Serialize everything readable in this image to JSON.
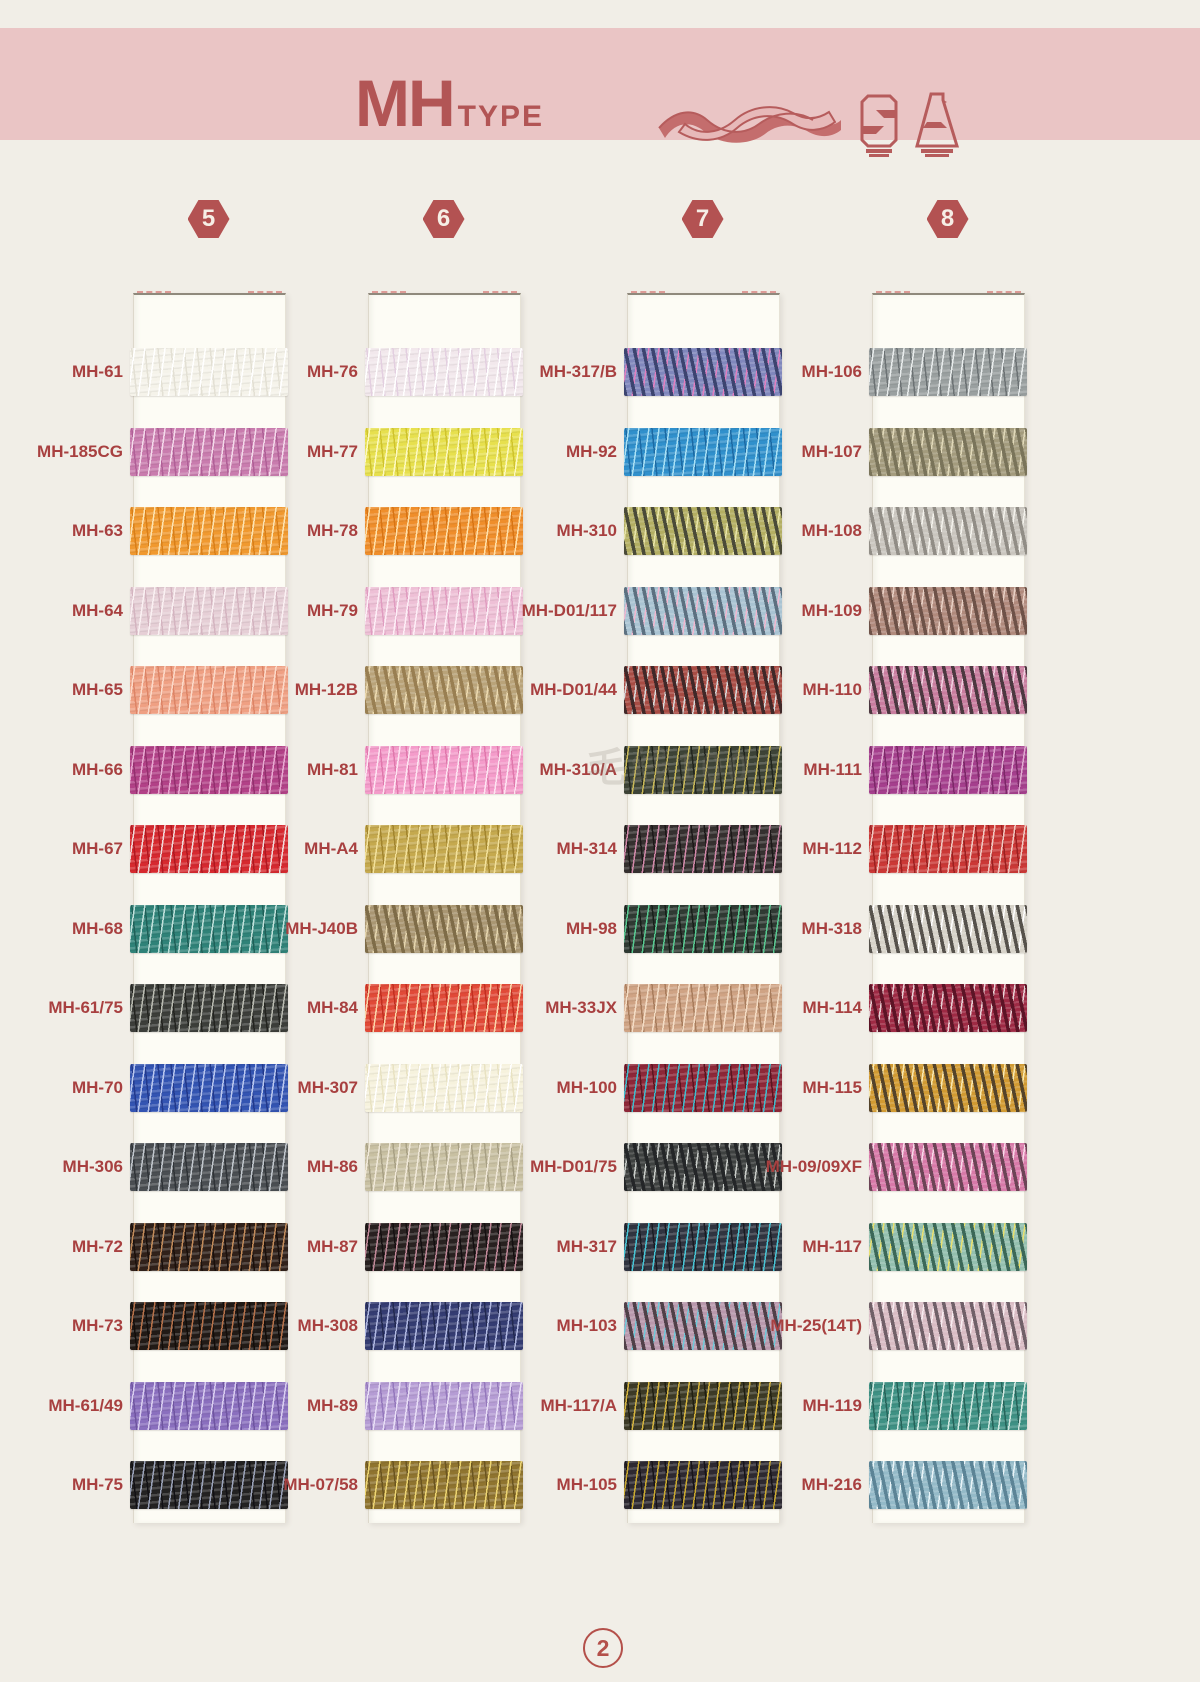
{
  "page": {
    "number": "2",
    "background": "#f1eee7"
  },
  "header": {
    "title_main": "MH",
    "title_sub": "TYPE",
    "band_color": "#eac5c5",
    "accent_color": "#b25555",
    "icons": [
      "twisted-ribbon-icon",
      "thread-spool-icon",
      "thread-cone-icon"
    ]
  },
  "watermark": {
    "text": "毛线100"
  },
  "columns": [
    {
      "badge": "5",
      "swatches": [
        {
          "code": "MH-61",
          "base": "#f5f3ea",
          "fleck": "#ffffff",
          "dark": "#e3e0d4",
          "twist": false
        },
        {
          "code": "MH-185CG",
          "base": "#c97cae",
          "fleck": "#f4d9ea",
          "dark": "#b05f97",
          "twist": false
        },
        {
          "code": "MH-63",
          "base": "#f0992f",
          "fleck": "#fde3b0",
          "dark": "#d97f18",
          "twist": false
        },
        {
          "code": "MH-64",
          "base": "#e6cfd6",
          "fleck": "#faf0f2",
          "dark": "#d4b4c0",
          "twist": false
        },
        {
          "code": "MH-65",
          "base": "#efa083",
          "fleck": "#fcd9c8",
          "dark": "#dd8466",
          "twist": false
        },
        {
          "code": "MH-66",
          "base": "#b24187",
          "fleck": "#e8a8d0",
          "dark": "#93306e",
          "twist": false
        },
        {
          "code": "MH-67",
          "base": "#d6292f",
          "fleck": "#f0d8d8",
          "dark": "#b01820",
          "twist": false
        },
        {
          "code": "MH-68",
          "base": "#2f8278",
          "fleck": "#bfe0da",
          "dark": "#1f6058",
          "twist": false
        },
        {
          "code": "MH-61/75",
          "base": "#3c3e3a",
          "fleck": "#b8bab0",
          "dark": "#232420",
          "twist": false
        },
        {
          "code": "MH-70",
          "base": "#3354b2",
          "fleck": "#b8c6ee",
          "dark": "#22398c",
          "twist": false
        },
        {
          "code": "MH-306",
          "base": "#4a4e52",
          "fleck": "#c0c6cc",
          "dark": "#303438",
          "twist": false
        },
        {
          "code": "MH-72",
          "base": "#30211a",
          "fleck": "#c08a5a",
          "dark": "#1a100c",
          "twist": false
        },
        {
          "code": "MH-73",
          "base": "#211a16",
          "fleck": "#b5714a",
          "dark": "#120d0a",
          "twist": false
        },
        {
          "code": "MH-61/49",
          "base": "#8a6fbe",
          "fleck": "#d8cdf0",
          "dark": "#6f55a0",
          "twist": false
        },
        {
          "code": "MH-75",
          "base": "#232222",
          "fleck": "#9aa2b8",
          "dark": "#111014",
          "twist": false
        }
      ]
    },
    {
      "badge": "6",
      "swatches": [
        {
          "code": "MH-76",
          "base": "#f2e8ec",
          "fleck": "#ffffff",
          "dark": "#e3cfe0",
          "twist": false
        },
        {
          "code": "MH-77",
          "base": "#e7e04e",
          "fleck": "#fdf9c0",
          "dark": "#cfc32c",
          "twist": false
        },
        {
          "code": "MH-78",
          "base": "#ef8e2b",
          "fleck": "#ffe0a8",
          "dark": "#d87414",
          "twist": false
        },
        {
          "code": "MH-79",
          "base": "#eec0d6",
          "fleck": "#fdeef6",
          "dark": "#e09cc0",
          "twist": false
        },
        {
          "code": "MH-12B",
          "base": "#b9a379",
          "fleck": "#ecd9ae",
          "dark": "#997f52",
          "twist": true
        },
        {
          "code": "MH-81",
          "base": "#f49cca",
          "fleck": "#fde4f1",
          "dark": "#e078ac",
          "twist": false
        },
        {
          "code": "MH-A4",
          "base": "#c5a94e",
          "fleck": "#f2e098",
          "dark": "#a2852e",
          "twist": false
        },
        {
          "code": "MH-J40B",
          "base": "#a99672",
          "fleck": "#e4d4ac",
          "dark": "#7e6c48",
          "twist": true
        },
        {
          "code": "MH-84",
          "base": "#e14a38",
          "fleck": "#fbd4a8",
          "dark": "#c22f20",
          "twist": false
        },
        {
          "code": "MH-307",
          "base": "#f6f2dd",
          "fleck": "#ffffff",
          "dark": "#e8e2c2",
          "twist": false
        },
        {
          "code": "MH-86",
          "base": "#c8c0a2",
          "fleck": "#f0e8d8",
          "dark": "#a8a084",
          "twist": false
        },
        {
          "code": "MH-87",
          "base": "#282120",
          "fleck": "#c08898",
          "dark": "#151011",
          "twist": false
        },
        {
          "code": "MH-308",
          "base": "#343c72",
          "fleck": "#aeb6e0",
          "dark": "#222950",
          "twist": false
        },
        {
          "code": "MH-89",
          "base": "#b59cd4",
          "fleck": "#e8def6",
          "dark": "#9478bc",
          "twist": false
        },
        {
          "code": "MH-07/58",
          "base": "#8f742f",
          "fleck": "#ecd470",
          "dark": "#6b5520",
          "twist": false
        }
      ]
    },
    {
      "badge": "7",
      "swatches": [
        {
          "code": "MH-317/B",
          "base": "#8087bc",
          "fleck": "#e080c0",
          "dark": "#3c4470",
          "twist": true
        },
        {
          "code": "MH-92",
          "base": "#3090cc",
          "fleck": "#a8e0f4",
          "dark": "#1c6aa4",
          "twist": false
        },
        {
          "code": "MH-310",
          "base": "#b3ae62",
          "fleck": "#e8e4a8",
          "dark": "#4a4a38",
          "twist": true
        },
        {
          "code": "MH-D01/117",
          "base": "#a9c3d2",
          "fleck": "#f0b8d0",
          "dark": "#5c7080",
          "twist": true
        },
        {
          "code": "MH-D01/44",
          "base": "#a84c44",
          "fleck": "#d8d8d8",
          "dark": "#402828",
          "twist": true
        },
        {
          "code": "MH-310/A",
          "base": "#3d4336",
          "fleck": "#c8b858",
          "dark": "#22261e",
          "twist": false
        },
        {
          "code": "MH-314",
          "base": "#35302f",
          "fleck": "#d088a8",
          "dark": "#1c1818",
          "twist": false
        },
        {
          "code": "MH-98",
          "base": "#2f3a33",
          "fleck": "#58c890",
          "dark": "#181f1a",
          "twist": false
        },
        {
          "code": "MH-33JX",
          "base": "#cfa384",
          "fleck": "#f4dcc4",
          "dark": "#a87c5c",
          "twist": false
        },
        {
          "code": "MH-100",
          "base": "#8e2738",
          "fleck": "#3fbccc",
          "dark": "#5c1420",
          "twist": false
        },
        {
          "code": "MH-D01/75",
          "base": "#3e4140",
          "fleck": "#c8ccc8",
          "dark": "#242628",
          "twist": true
        },
        {
          "code": "MH-317",
          "base": "#303440",
          "fleck": "#48c4d4",
          "dark": "#1a1c24",
          "twist": false
        },
        {
          "code": "MH-103",
          "base": "#b898ac",
          "fleck": "#70c8d8",
          "dark": "#504048",
          "twist": true
        },
        {
          "code": "MH-117/A",
          "base": "#3c3a26",
          "fleck": "#d4b440",
          "dark": "#201f12",
          "twist": false
        },
        {
          "code": "MH-105",
          "base": "#2d2931",
          "fleck": "#c8a830",
          "dark": "#171419",
          "twist": false
        }
      ]
    },
    {
      "badge": "8",
      "swatches": [
        {
          "code": "MH-106",
          "base": "#9aa0a0",
          "fleck": "#e8ecec",
          "dark": "#6c7274",
          "twist": false
        },
        {
          "code": "MH-107",
          "base": "#a39b7d",
          "fleck": "#e0d8b8",
          "dark": "#7a745a",
          "twist": true
        },
        {
          "code": "MH-108",
          "base": "#c9c5be",
          "fleck": "#f4f2ec",
          "dark": "#918d86",
          "twist": true
        },
        {
          "code": "MH-109",
          "base": "#b08a7c",
          "fleck": "#e8d0c4",
          "dark": "#6e5248",
          "twist": true
        },
        {
          "code": "MH-110",
          "base": "#c87c9e",
          "fleck": "#f0d0e0",
          "dark": "#4c3840",
          "twist": true
        },
        {
          "code": "MH-111",
          "base": "#a53f8d",
          "fleck": "#e0a8d0",
          "dark": "#7c2868",
          "twist": false
        },
        {
          "code": "MH-112",
          "base": "#cb3836",
          "fleck": "#f0c8c0",
          "dark": "#9c2020",
          "twist": false
        },
        {
          "code": "MH-318",
          "base": "#d6d2c8",
          "fleck": "#ffffff",
          "dark": "#56524c",
          "twist": true
        },
        {
          "code": "MH-114",
          "base": "#9e2a44",
          "fleck": "#e8d0d4",
          "dark": "#5c1426",
          "twist": true
        },
        {
          "code": "MH-115",
          "base": "#d19a32",
          "fleck": "#f8e8b0",
          "dark": "#54432a",
          "twist": true
        },
        {
          "code": "MH-09/09XF",
          "base": "#d779a8",
          "fleck": "#f8d8e8",
          "dark": "#6c4456",
          "twist": true
        },
        {
          "code": "MH-117",
          "base": "#93bfae",
          "fleck": "#e8e070",
          "dark": "#3c6858",
          "twist": true
        },
        {
          "code": "MH-25(14T)",
          "base": "#d9bcc4",
          "fleck": "#f8ecf0",
          "dark": "#706068",
          "twist": true
        },
        {
          "code": "MH-119",
          "base": "#3e9184",
          "fleck": "#d0e8e0",
          "dark": "#26645a",
          "twist": false
        },
        {
          "code": "MH-216",
          "base": "#94bac8",
          "fleck": "#e8f4f8",
          "dark": "#5c8496",
          "twist": true
        }
      ]
    }
  ]
}
